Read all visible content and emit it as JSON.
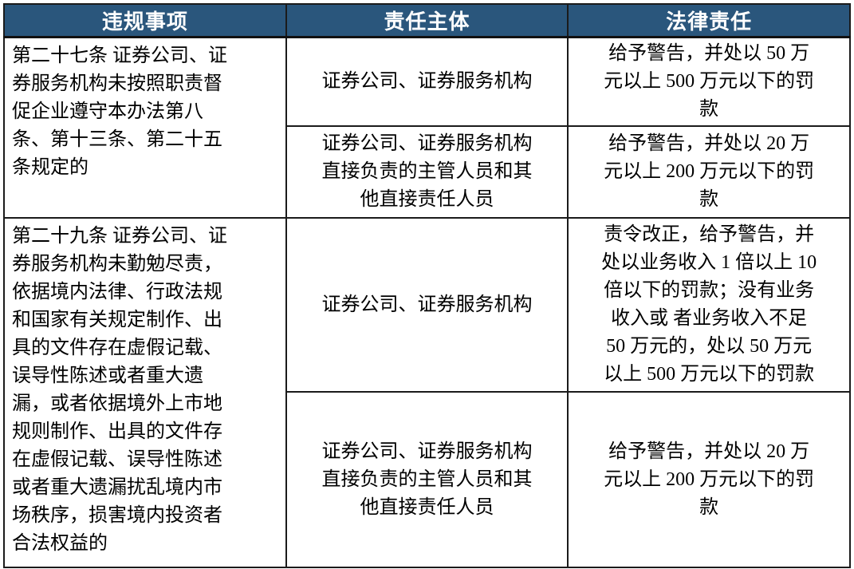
{
  "table": {
    "headers": [
      {
        "label": "违规事项"
      },
      {
        "label": "责任主体"
      },
      {
        "label": "法律责任"
      }
    ],
    "sections": [
      {
        "violation": "第二十七条 证券公司、证\n券服务机构未按照职责督\n促企业遵守本办法第八\n条、第十三条、第二十五\n条规定的",
        "rows": [
          {
            "subject": "证券公司、证券服务机构",
            "liability": "给予警告，并处以 50 万\n元以上 500 万元以下的罚\n款"
          },
          {
            "subject": "证券公司、证券服务机构\n直接负责的主管人员和其\n他直接责任人员",
            "liability": "给予警告，并处以 20 万\n元以上 200 万元以下的罚\n款"
          }
        ]
      },
      {
        "violation": "第二十九条 证券公司、证\n券服务机构未勤勉尽责，\n依据境内法律、行政法规\n和国家有关规定制作、出\n具的文件存在虚假记载、\n误导性陈述或者重大遗\n漏，或者依据境外上市地\n规则制作、出具的文件存\n在虚假记载、误导性陈述\n或者重大遗漏扰乱境内市\n场秩序，损害境内投资者\n合法权益的",
        "rows": [
          {
            "subject": "证券公司、证券服务机构",
            "liability": "责令改正，给予警告，并\n处以业务收入 1 倍以上 10\n倍以下的罚款；没有业务\n收入或 者业务收入不足\n50 万元的，处以 50 万元\n以上 500 万元以下的罚款"
          },
          {
            "subject": "证券公司、证券服务机构\n直接负责的主管人员和其\n他直接责任人员",
            "liability": "给予警告，并处以 20 万\n元以上 200 万元以下的罚\n款"
          }
        ]
      }
    ],
    "colors": {
      "header_bg": "#2A567C",
      "header_text": "#FFFFFF",
      "border": "#1B1B1B",
      "body_text": "#000000",
      "page_bg": "#FFFFFF"
    }
  }
}
